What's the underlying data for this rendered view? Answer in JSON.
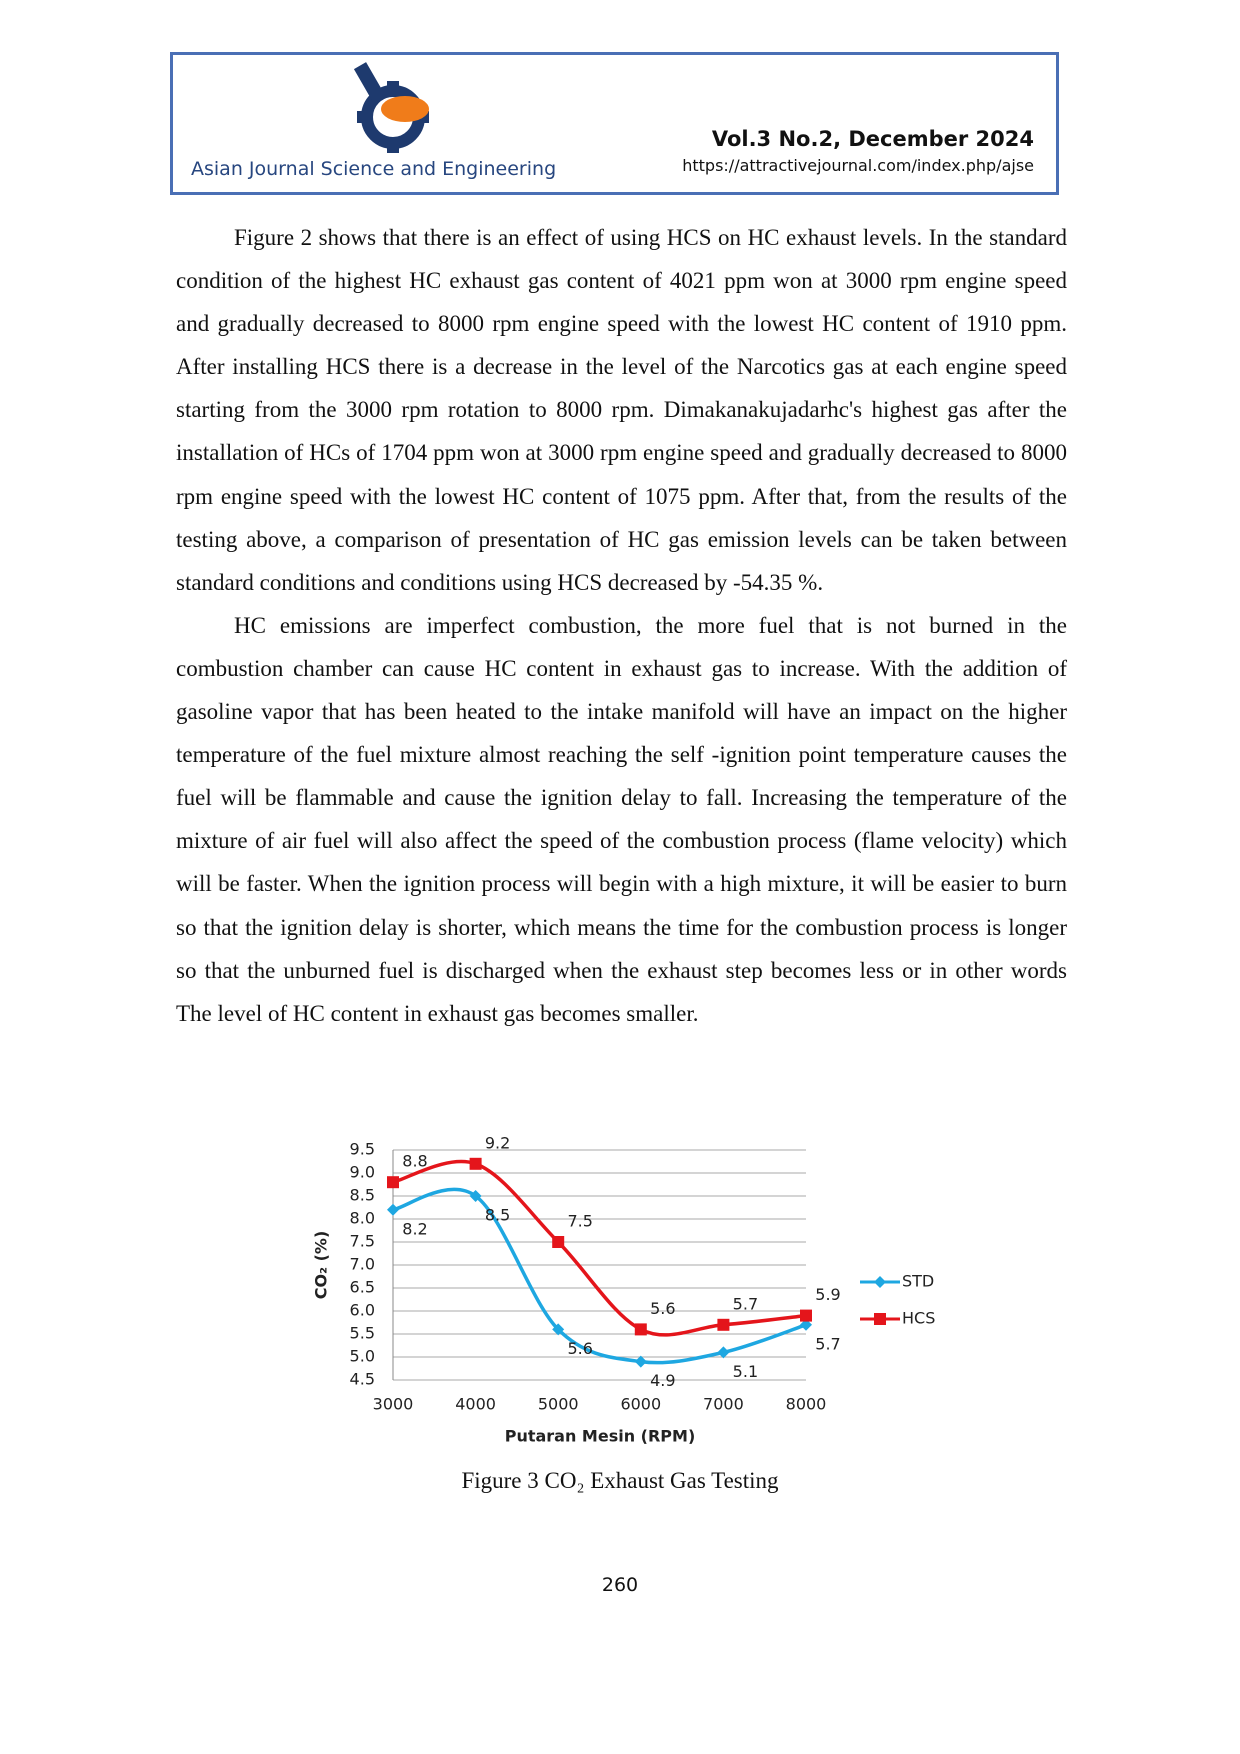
{
  "header": {
    "journal": "Asian Journal Science and Engineering",
    "volume": "Vol.3 No.2, December 2024",
    "url": "https://attractivejournal.com/index.php/ajse"
  },
  "paragraphs": [
    "Figure 2 shows that there is an effect of using HCS on HC exhaust levels. In the standard condition of the highest HC exhaust gas content of 4021 ppm won at 3000 rpm engine speed and gradually decreased to 8000 rpm engine speed with the lowest HC content of 1910 ppm. After installing HCS there is a decrease in the level of the Narcotics gas at each engine speed starting from the 3000 rpm rotation to 8000 rpm. Dimakanakujadarhc's highest gas after the installation of HCs of 1704 ppm won at 3000 rpm engine speed and gradually decreased to 8000 rpm engine speed with the lowest HC content of 1075 ppm. After that, from the results of the testing above, a comparison of presentation of HC gas emission levels can be taken between standard conditions and conditions using HCS decreased by -54.35 %.",
    "HC emissions are imperfect combustion, the more fuel that is not burned in the combustion chamber can cause HC content in exhaust gas to increase. With the addition of gasoline vapor that has been heated to the intake manifold will have an impact on the higher temperature of the fuel mixture almost reaching the self -ignition point temperature causes the fuel will be flammable and cause the ignition delay to fall. Increasing the temperature of the mixture of air fuel will also affect the speed of the combustion process (flame velocity) which will be faster. When the ignition process will begin with a high mixture, it will be easier to burn so that the ignition delay is shorter, which means the time for the combustion process is longer so that the unburned fuel is discharged when the exhaust step becomes less or in other words The level of HC content in exhaust gas becomes smaller."
  ],
  "chart_data": {
    "type": "line",
    "xlabel": "Putaran Mesin (RPM)",
    "ylabel": "CO₂ (%)",
    "x": [
      3000,
      4000,
      5000,
      6000,
      7000,
      8000
    ],
    "xlim": [
      3000,
      8000
    ],
    "xticks": [
      3000,
      4000,
      5000,
      6000,
      7000,
      8000
    ],
    "ylim": [
      4.5,
      9.5
    ],
    "yticks": [
      4.5,
      {
        "value": 5,
        "label": "5.0"
      },
      5.5,
      {
        "value": 6,
        "label": "6.0"
      },
      6.5,
      {
        "value": 7,
        "label": "7.0"
      },
      7.5,
      {
        "value": 8,
        "label": "8.0"
      },
      8.5,
      {
        "value": 9,
        "label": "9.0"
      },
      9.5
    ],
    "grid": true,
    "legend": "right",
    "series": [
      {
        "name": "STD",
        "color": "#1ea7e1",
        "marker": "diamond",
        "values": [
          8.2,
          8.5,
          5.6,
          4.9,
          5.1,
          5.7
        ]
      },
      {
        "name": "HCS",
        "color": "#e4151b",
        "marker": "square",
        "values": [
          8.8,
          9.2,
          7.5,
          5.6,
          5.7,
          5.9
        ]
      }
    ]
  },
  "caption": "Figure 3 CO₂ Exhaust Gas Testing",
  "page_number": "260"
}
